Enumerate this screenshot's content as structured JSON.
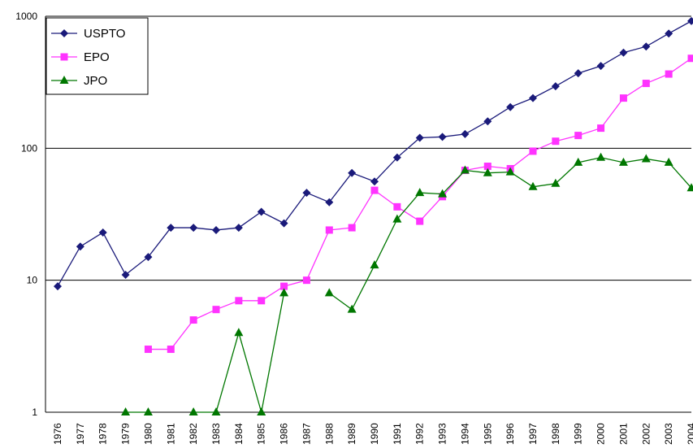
{
  "chart_data": {
    "type": "line",
    "title": "",
    "xlabel": "",
    "ylabel": "",
    "y_scale": "log",
    "ylim": [
      1,
      1000
    ],
    "y_ticks": [
      "1",
      "10",
      "100",
      "1000"
    ],
    "grid": "horizontal major lines",
    "legend_position": "top-left",
    "categories": [
      "1976",
      "1977",
      "1978",
      "1979",
      "1980",
      "1981",
      "1982",
      "1983",
      "1984",
      "1985",
      "1986",
      "1987",
      "1988",
      "1989",
      "1990",
      "1991",
      "1992",
      "1993",
      "1994",
      "1995",
      "1996",
      "1997",
      "1998",
      "1999",
      "2000",
      "2001",
      "2002",
      "2003",
      "2004"
    ],
    "series": [
      {
        "name": "USPTO",
        "color": "#1a1a7a",
        "marker": "diamond",
        "values": [
          9,
          18,
          23,
          11,
          15,
          25,
          25,
          24,
          25,
          33,
          27,
          46,
          39,
          65,
          56,
          85,
          120,
          122,
          128,
          160,
          205,
          240,
          295,
          370,
          420,
          530,
          590,
          740,
          920
        ]
      },
      {
        "name": "EPO",
        "color": "#ff33ff",
        "marker": "square",
        "values": [
          null,
          null,
          null,
          null,
          3,
          3,
          5,
          6,
          7,
          7,
          9,
          10,
          24,
          25,
          48,
          36,
          28,
          43,
          68,
          73,
          70,
          95,
          113,
          125,
          142,
          240,
          310,
          365,
          480
        ]
      },
      {
        "name": "JPO",
        "color": "#007700",
        "marker": "triangle",
        "values": [
          null,
          null,
          null,
          1,
          1,
          null,
          1,
          1,
          4,
          1,
          8,
          null,
          8,
          6,
          13,
          29,
          46,
          45,
          68,
          65,
          66,
          51,
          54,
          78,
          85,
          78,
          83,
          78,
          50
        ]
      }
    ]
  }
}
